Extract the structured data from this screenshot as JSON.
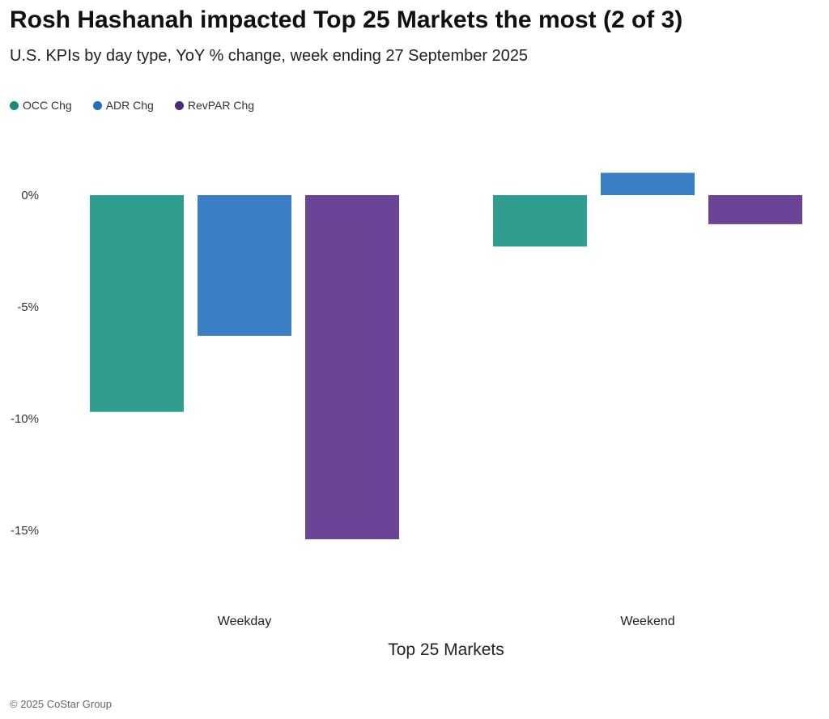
{
  "header": {
    "title": "Rosh Hashanah impacted Top 25 Markets the most (2 of 3)",
    "subtitle": "U.S. KPIs by day type, YoY % change, week ending 27 September 2025"
  },
  "footer": {
    "copyright": "© 2025 CoStar Group"
  },
  "chart_data": {
    "type": "bar",
    "title": "Rosh Hashanah impacted Top 25 Markets the most (2 of 3)",
    "subtitle": "U.S. KPIs by day type, YoY % change, week ending 27 September 2025",
    "xlabel": "Top 25 Markets",
    "ylabel": "",
    "categories": [
      "Weekday",
      "Weekend"
    ],
    "series": [
      {
        "name": "OCC Chg",
        "color": "#2f9e8f",
        "legend_color": "#1a8a78",
        "values": [
          -9.7,
          -2.3
        ]
      },
      {
        "name": "ADR Chg",
        "color": "#3a7fc4",
        "legend_color": "#1f6fbf",
        "values": [
          -6.3,
          1.0
        ]
      },
      {
        "name": "RevPAR Chg",
        "color": "#6a4497",
        "legend_color": "#4b2a80",
        "values": [
          -15.4,
          -1.3
        ]
      }
    ],
    "y_ticks": [
      0,
      -5,
      -10,
      -15
    ],
    "y_tick_labels": [
      "0%",
      "-5%",
      "-10%",
      "-15%"
    ],
    "ylim": [
      -15.4,
      1.0
    ],
    "grid": false,
    "legend_position": "top-left"
  }
}
